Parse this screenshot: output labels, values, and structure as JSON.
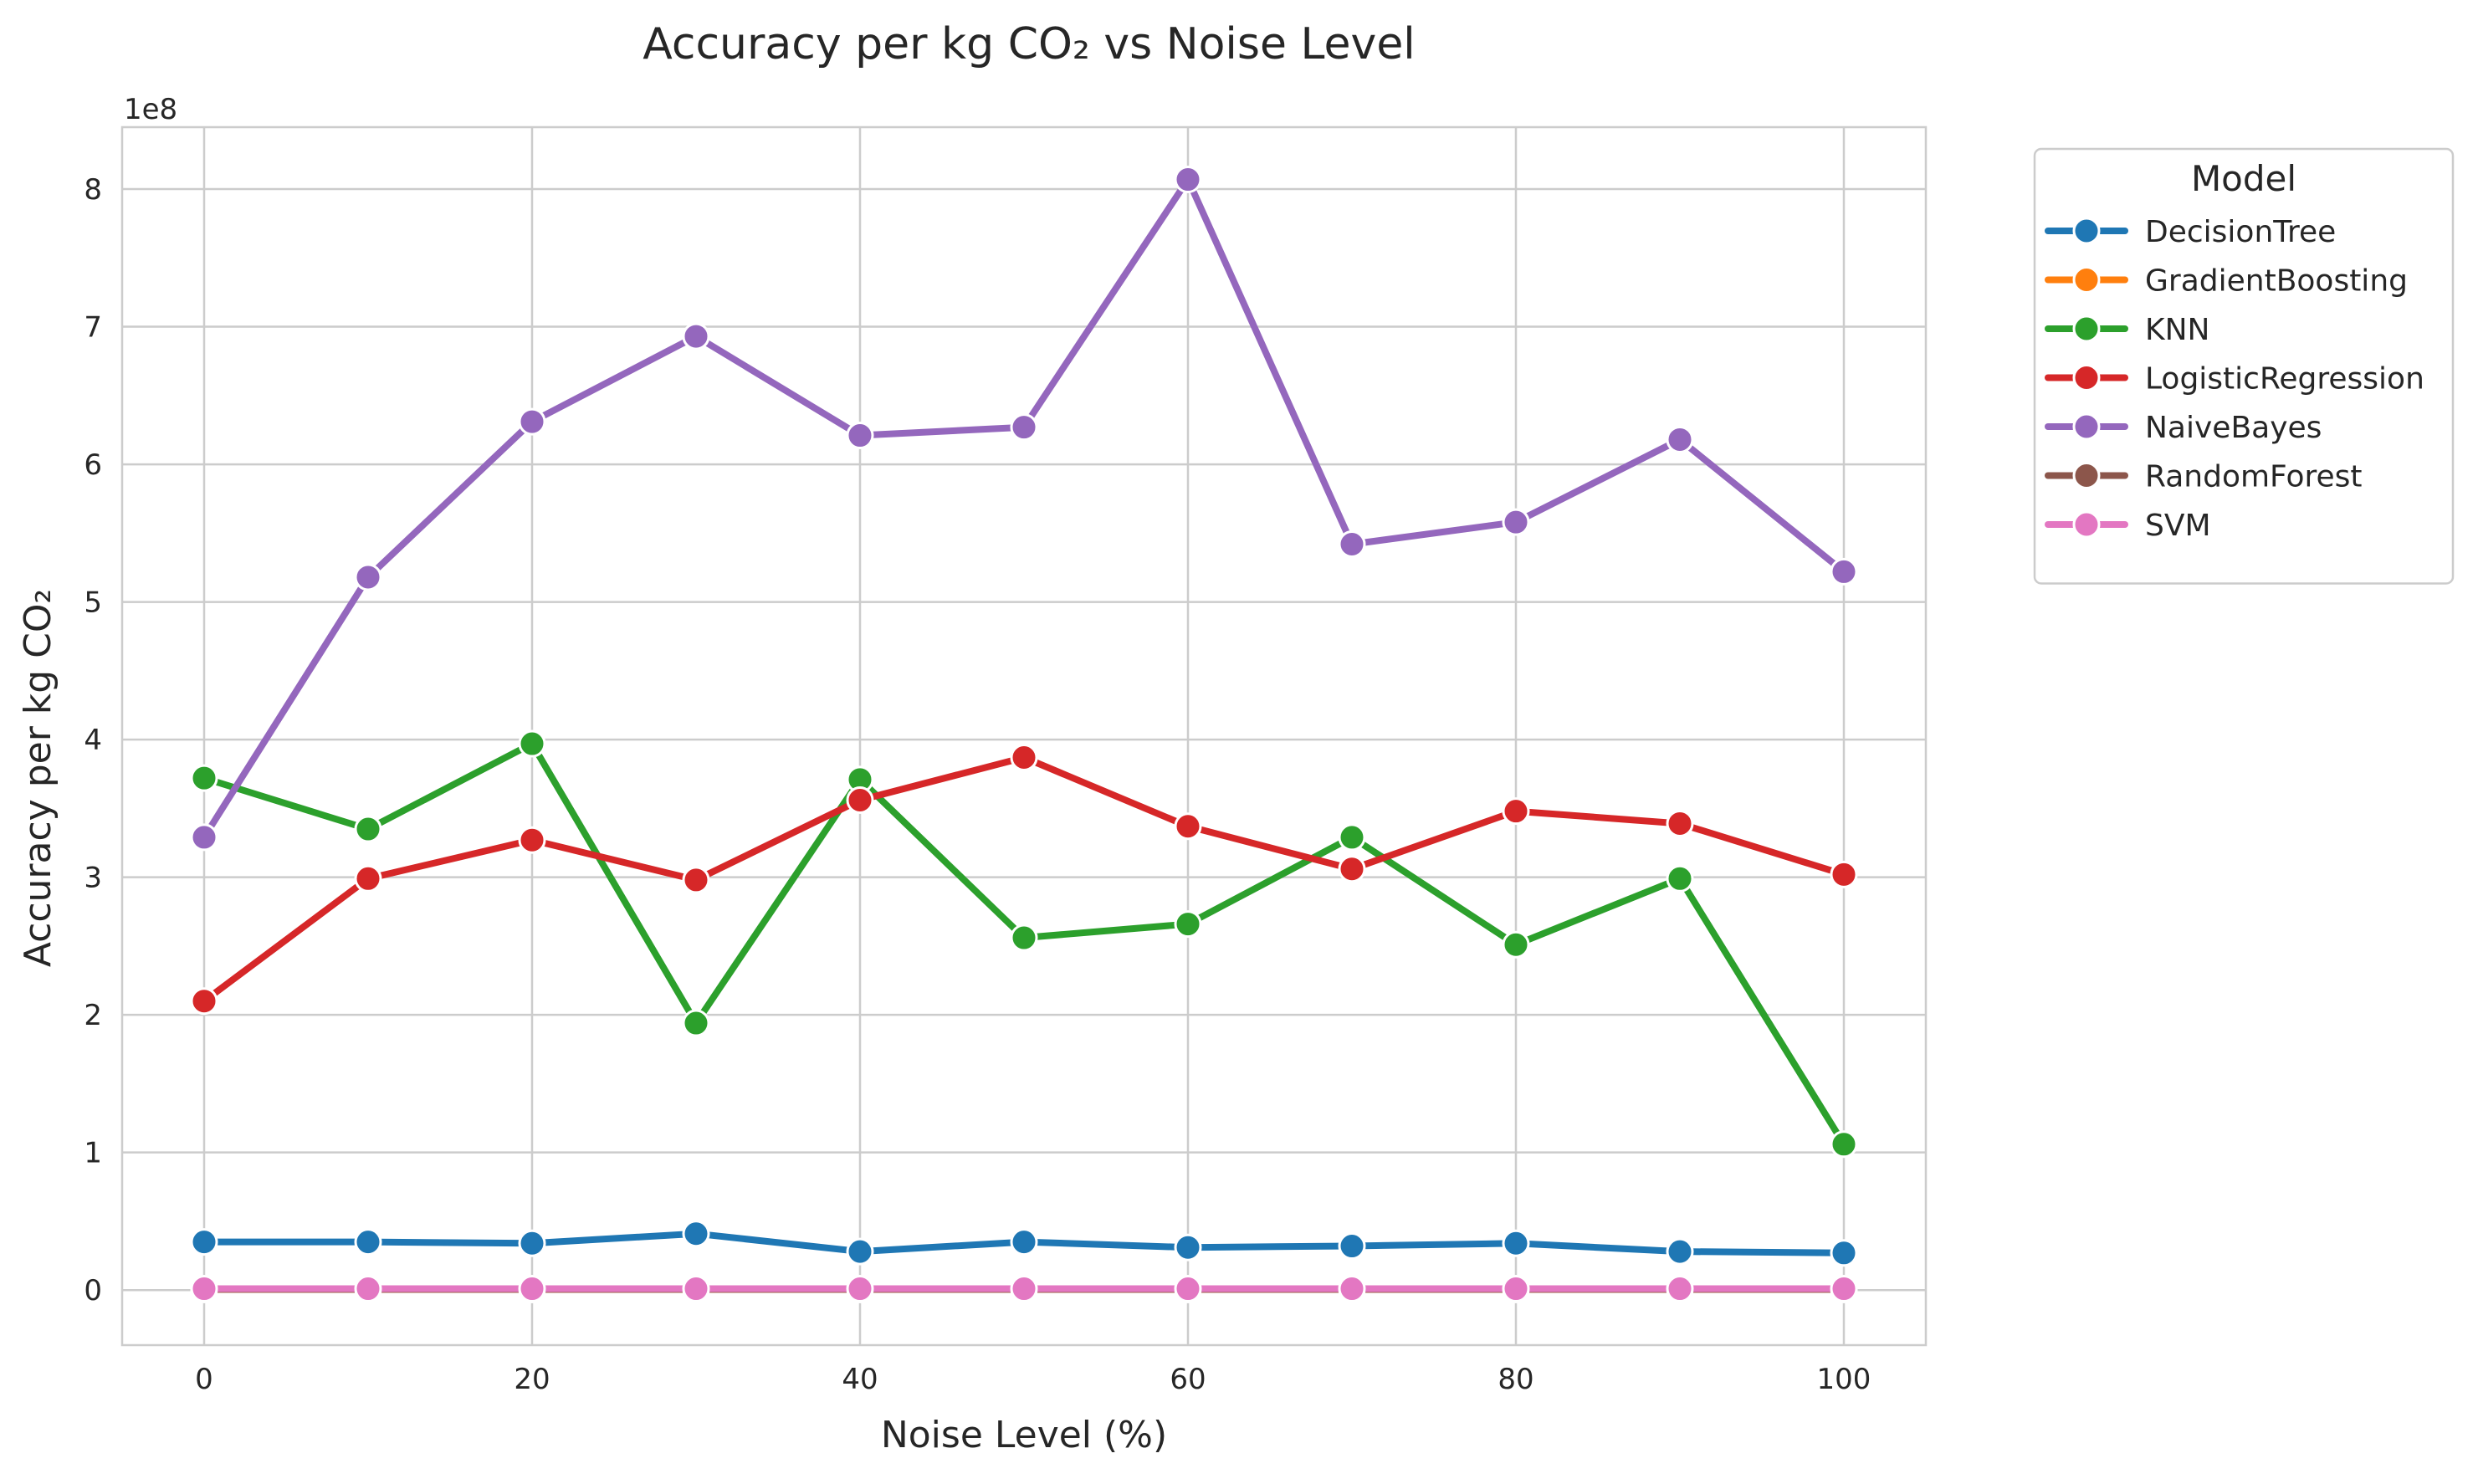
{
  "chart_data": {
    "type": "line",
    "title": "Accuracy per kg CO₂ vs Noise Level",
    "xlabel": "Noise Level (%)",
    "ylabel": "Accuracy per kg CO₂",
    "y_offset_label": "1e8",
    "x": [
      0,
      10,
      20,
      30,
      40,
      50,
      60,
      70,
      80,
      90,
      100
    ],
    "xlim": [
      -5,
      105
    ],
    "ylim": [
      -0.4,
      8.45
    ],
    "y_unit_multiplier": 100000000,
    "x_ticks": [
      0,
      20,
      40,
      60,
      80,
      100
    ],
    "x_tick_labels": [
      "0",
      "20",
      "40",
      "60",
      "80",
      "100"
    ],
    "y_ticks": [
      0,
      1,
      2,
      3,
      4,
      5,
      6,
      7,
      8
    ],
    "y_tick_labels": [
      "0",
      "1",
      "2",
      "3",
      "4",
      "5",
      "6",
      "7",
      "8"
    ],
    "grid": true,
    "legend": {
      "title": "Model",
      "placement": "outside-upper-right"
    },
    "series": [
      {
        "name": "DecisionTree",
        "color": "#1f77b4",
        "values": [
          0.35,
          0.35,
          0.34,
          0.41,
          0.28,
          0.35,
          0.31,
          0.32,
          0.34,
          0.28,
          0.27
        ]
      },
      {
        "name": "GradientBoosting",
        "color": "#ff7f0e",
        "values": [
          0.005,
          0.005,
          0.005,
          0.005,
          0.005,
          0.005,
          0.005,
          0.005,
          0.005,
          0.005,
          0.005
        ]
      },
      {
        "name": "KNN",
        "color": "#2ca02c",
        "values": [
          3.72,
          3.35,
          3.97,
          1.94,
          3.71,
          2.56,
          2.66,
          3.29,
          2.51,
          2.99,
          1.06
        ]
      },
      {
        "name": "LogisticRegression",
        "color": "#d62728",
        "values": [
          2.1,
          2.99,
          3.27,
          2.98,
          3.56,
          3.87,
          3.37,
          3.06,
          3.48,
          3.39,
          3.02
        ]
      },
      {
        "name": "NaiveBayes",
        "color": "#9467bd",
        "values": [
          3.29,
          5.18,
          6.31,
          6.93,
          6.21,
          6.27,
          8.07,
          5.42,
          5.58,
          6.18,
          5.22
        ]
      },
      {
        "name": "RandomForest",
        "color": "#8c564b",
        "values": [
          0.005,
          0.005,
          0.005,
          0.005,
          0.005,
          0.005,
          0.005,
          0.005,
          0.005,
          0.005,
          0.005
        ]
      },
      {
        "name": "SVM",
        "color": "#e377c2",
        "values": [
          0.01,
          0.01,
          0.01,
          0.01,
          0.01,
          0.01,
          0.01,
          0.01,
          0.01,
          0.01,
          0.01
        ]
      }
    ]
  }
}
